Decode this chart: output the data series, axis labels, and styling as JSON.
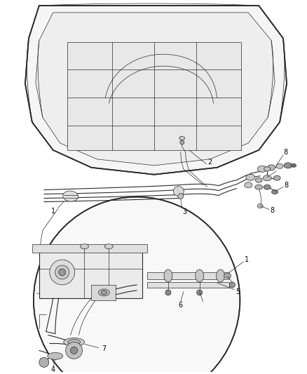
{
  "bg_color": "#ffffff",
  "line_color": "#2a2a2a",
  "label_color": "#000000",
  "fig_width": 4.38,
  "fig_height": 5.33,
  "dpi": 100,
  "lw_main": 0.8,
  "lw_thin": 0.5,
  "lw_thick": 1.2,
  "label_fs": 7
}
